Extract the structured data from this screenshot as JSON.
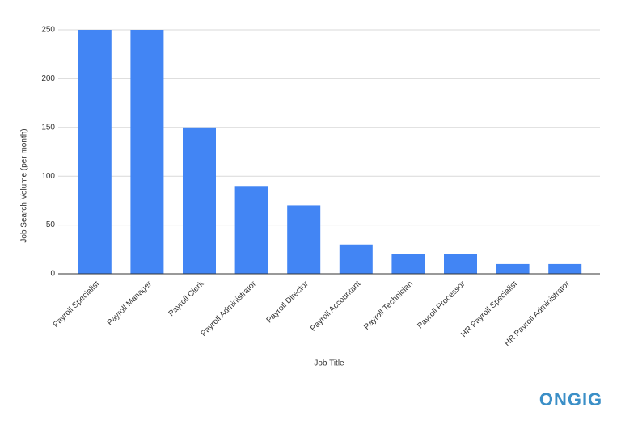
{
  "chart_data": {
    "type": "bar",
    "categories": [
      "Payroll Specialist",
      "Payroll Manager",
      "Payroll Clerk",
      "Payroll Administrator",
      "Payroll Director",
      "Payroll Accountant",
      "Payroll Technician",
      "Payroll Processor",
      "HR Payroll Specialist",
      "HR Payroll Administrator"
    ],
    "values": [
      250,
      250,
      150,
      90,
      70,
      30,
      20,
      20,
      10,
      10
    ],
    "color": "#4285f4",
    "xlabel": "Job Title",
    "ylabel": "Job Search Volume (per month)",
    "ylim": [
      0,
      250
    ],
    "yticks": [
      0,
      50,
      100,
      150,
      200,
      250
    ],
    "grid": true
  },
  "branding": {
    "logo": "ONGIG"
  }
}
